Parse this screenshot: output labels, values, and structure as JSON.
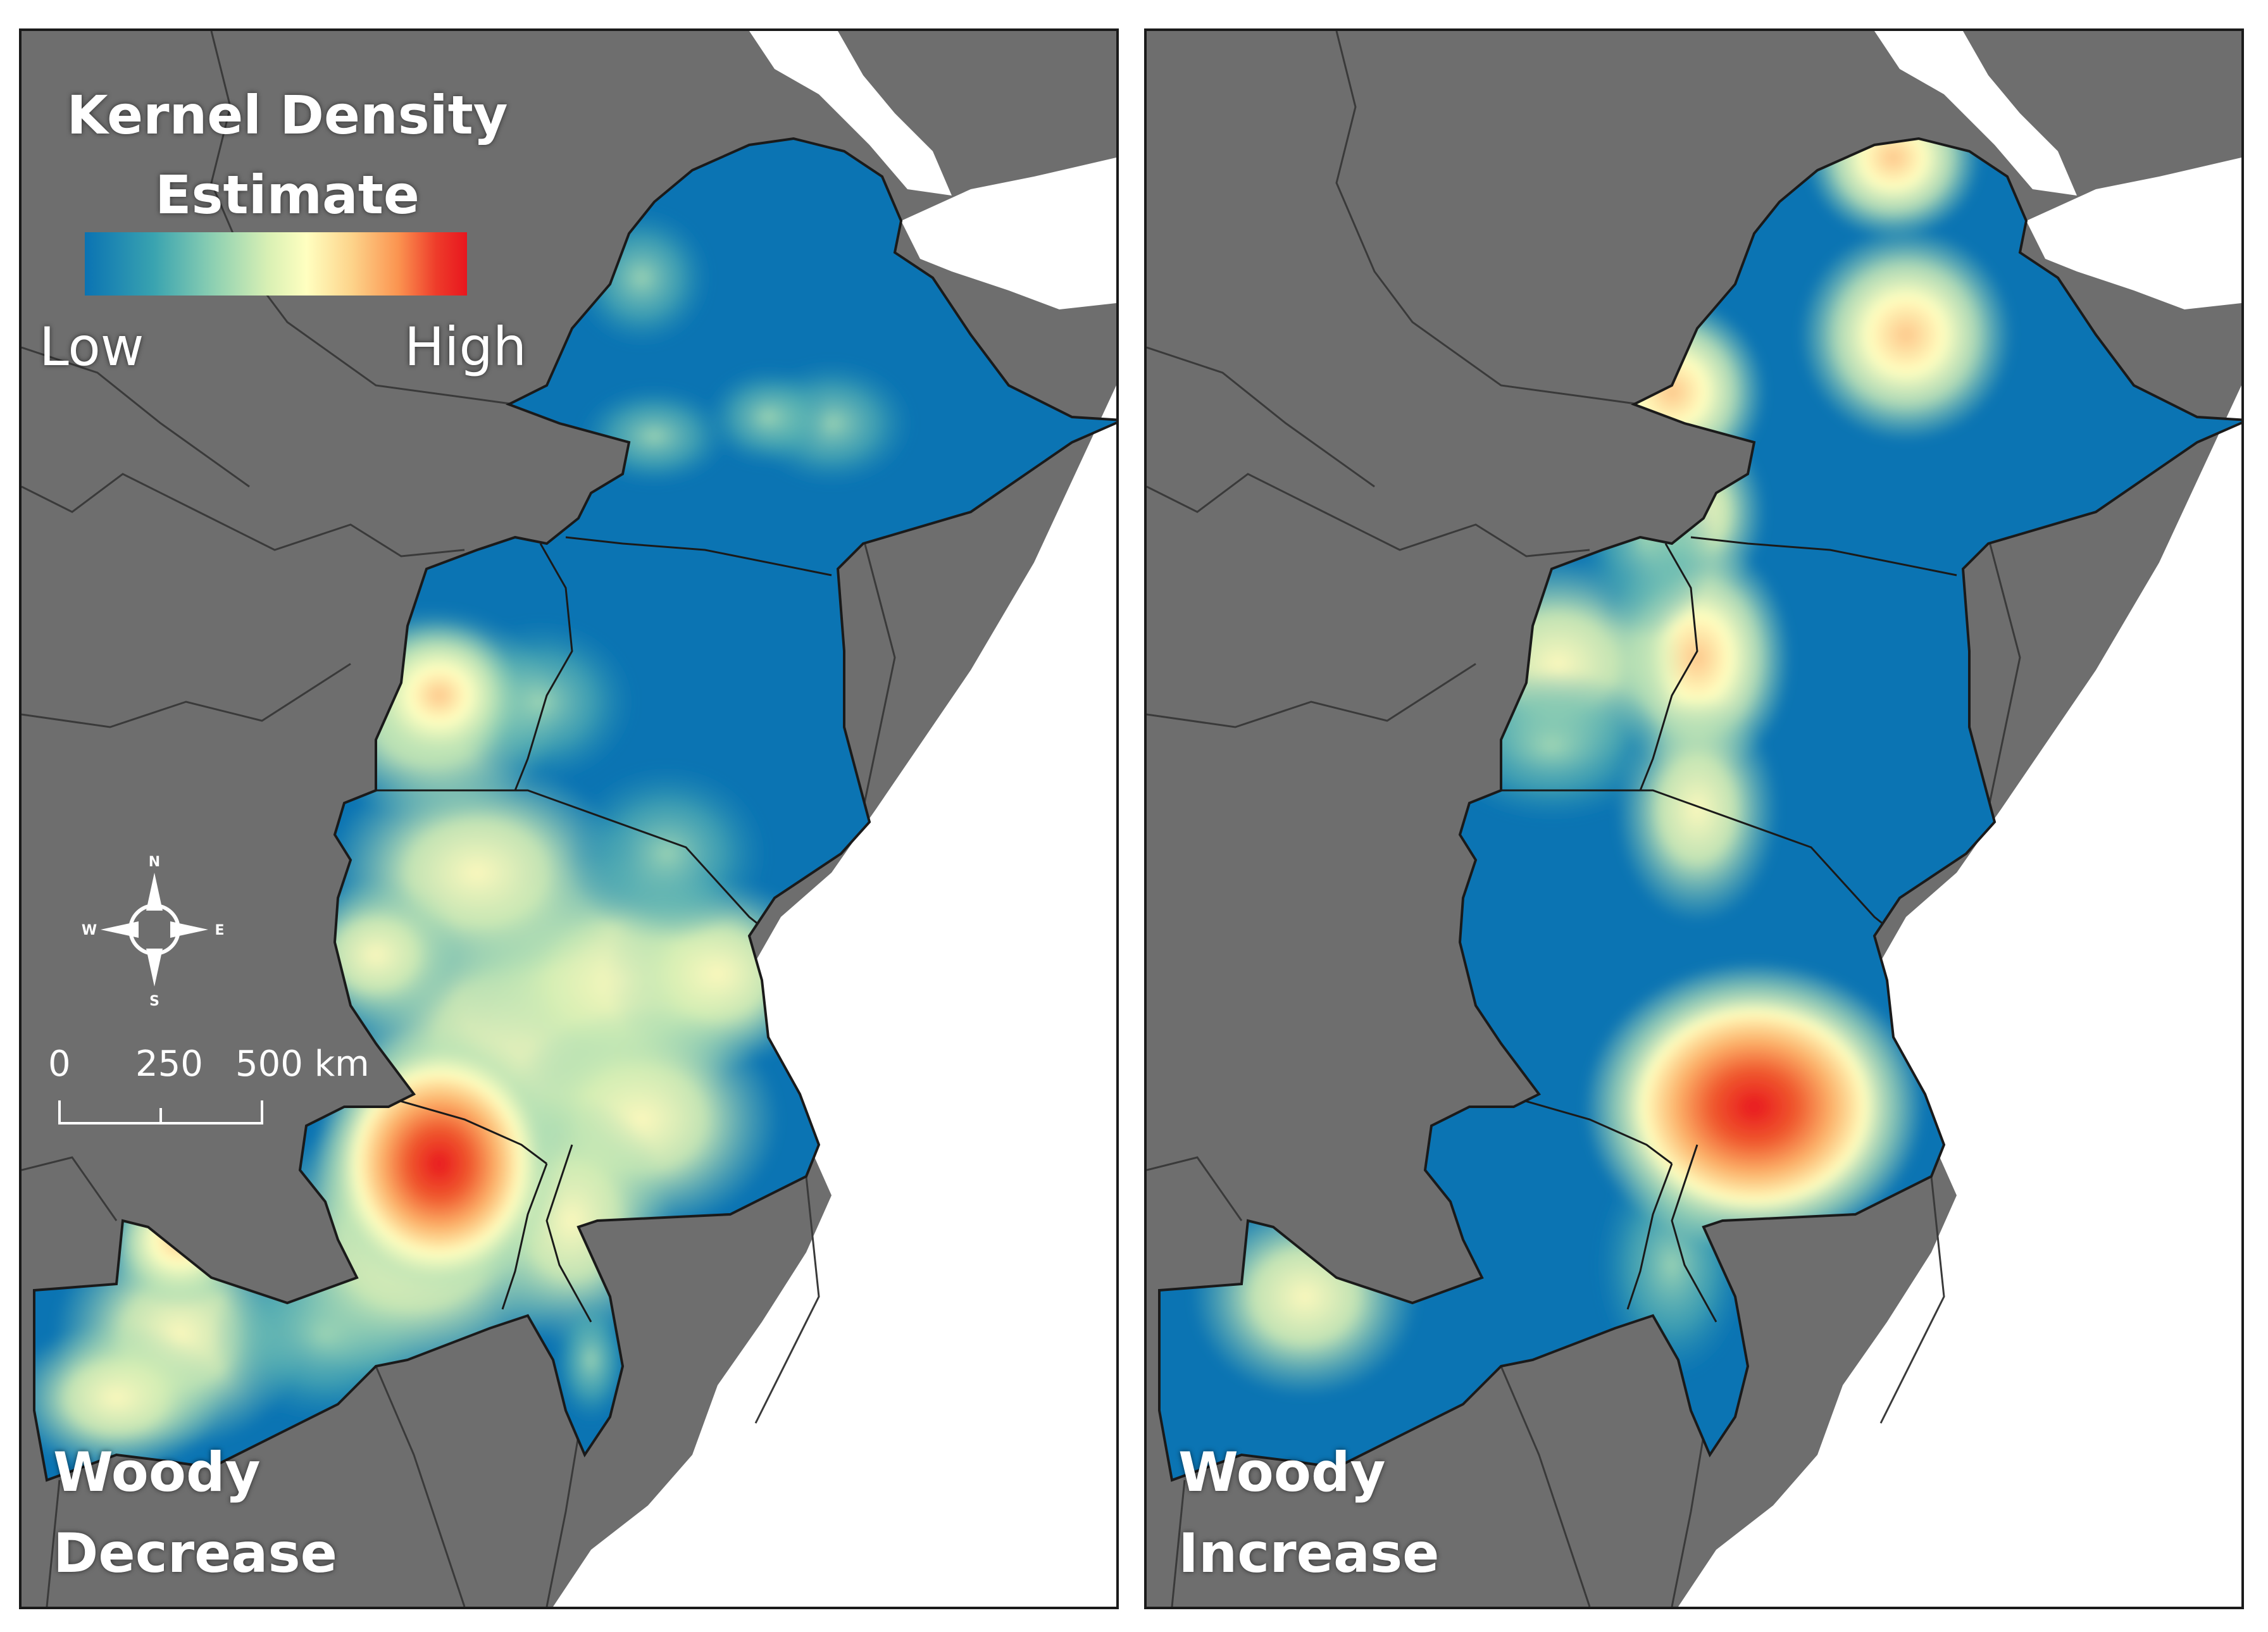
{
  "legend": {
    "title_line1": "Kernel Density",
    "title_line2": "Estimate",
    "low_label": "Low",
    "high_label": "High",
    "colors": [
      "#0a73b3",
      "#39a3b0",
      "#8fd1b2",
      "#ffffc0",
      "#fdd38a",
      "#fb9450",
      "#e8161e"
    ]
  },
  "compass": {
    "n": "N",
    "s": "S",
    "e": "E",
    "w": "W"
  },
  "scale_bar": {
    "tick_0": "0",
    "tick_1": "250",
    "tick_2": "500 km"
  },
  "panels": [
    {
      "caption_line1": "Woody",
      "caption_line2": "Decrease"
    },
    {
      "caption_line1": "Woody",
      "caption_line2": "Increase"
    }
  ],
  "colors": {
    "land_outside": "#6e6e6e",
    "water": "#ffffff",
    "density_low": "#0a73b3",
    "density_high": "#e8161e",
    "border": "#1a1a1a"
  }
}
